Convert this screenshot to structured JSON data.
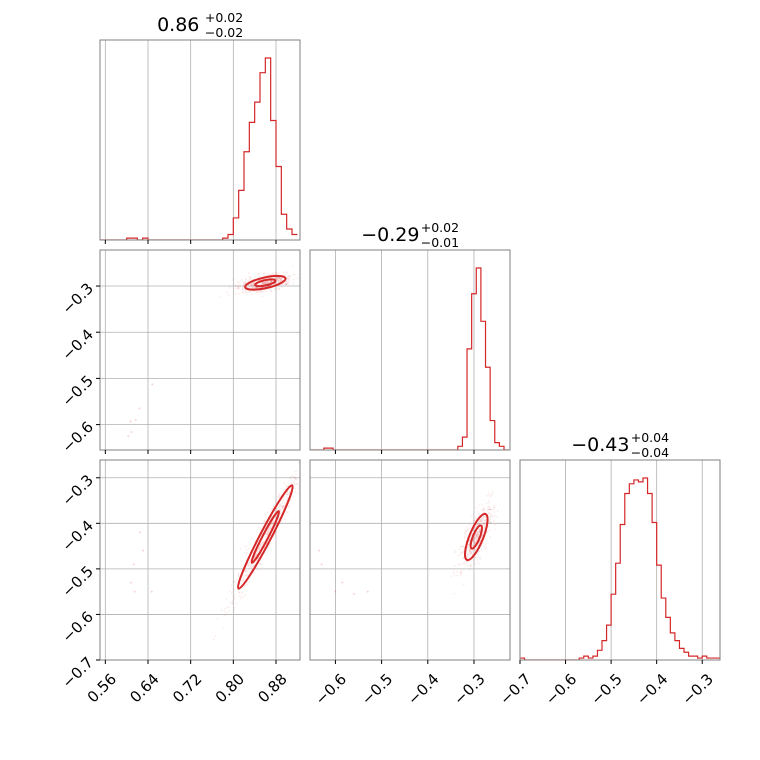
{
  "chart_data": {
    "type": "corner",
    "color": "#d62728",
    "grid": true,
    "parameters": [
      {
        "title": {
          "value": "0.86",
          "plus": "+0.02",
          "minus": "−0.02"
        },
        "range": [
          0.55,
          0.925
        ],
        "ticks": [
          0.56,
          0.64,
          0.72,
          0.8,
          0.88
        ],
        "tick_labels": [
          "0.56",
          "0.64",
          "0.72",
          "0.80",
          "0.88"
        ]
      },
      {
        "title": {
          "value": "−0.29",
          "plus": "+0.02",
          "minus": "−0.01"
        },
        "range": [
          -0.655,
          -0.222
        ],
        "ticks": [
          -0.6,
          -0.5,
          -0.4,
          -0.3
        ],
        "tick_labels": [
          "−0.6",
          "−0.5",
          "−0.4",
          "−0.3"
        ]
      },
      {
        "title": {
          "value": "−0.43",
          "plus": "+0.04",
          "minus": "−0.04"
        },
        "range": [
          -0.7,
          -0.261
        ],
        "ticks": [
          -0.7,
          -0.6,
          -0.5,
          -0.4,
          -0.3
        ],
        "tick_labels": [
          "−0.7",
          "−0.6",
          "−0.5",
          "−0.4",
          "−0.3"
        ]
      }
    ],
    "histograms": [
      {
        "param": 0,
        "x": [
          0.555,
          0.565,
          0.575,
          0.585,
          0.595,
          0.605,
          0.615,
          0.625,
          0.635,
          0.645,
          0.655,
          0.665,
          0.675,
          0.685,
          0.695,
          0.705,
          0.715,
          0.725,
          0.735,
          0.745,
          0.755,
          0.765,
          0.775,
          0.785,
          0.795,
          0.805,
          0.815,
          0.825,
          0.835,
          0.845,
          0.855,
          0.865,
          0.875,
          0.885,
          0.895,
          0.905,
          0.915
        ],
        "counts": [
          0,
          0,
          0,
          0,
          0,
          0.01,
          0.01,
          0,
          0.01,
          0,
          0,
          0,
          0,
          0,
          0,
          0,
          0,
          0,
          0,
          0,
          0,
          0,
          0,
          0.01,
          0.03,
          0.12,
          0.27,
          0.48,
          0.64,
          0.75,
          0.91,
          0.99,
          0.65,
          0.4,
          0.14,
          0.06,
          0.03
        ]
      },
      {
        "param": 1,
        "x": [
          -0.65,
          -0.64,
          -0.63,
          -0.62,
          -0.61,
          -0.6,
          -0.59,
          -0.58,
          -0.57,
          -0.56,
          -0.55,
          -0.54,
          -0.53,
          -0.52,
          -0.51,
          -0.5,
          -0.49,
          -0.48,
          -0.47,
          -0.46,
          -0.45,
          -0.44,
          -0.43,
          -0.42,
          -0.41,
          -0.4,
          -0.39,
          -0.38,
          -0.37,
          -0.36,
          -0.35,
          -0.34,
          -0.33,
          -0.32,
          -0.31,
          -0.3,
          -0.29,
          -0.28,
          -0.27,
          -0.26,
          -0.25,
          -0.24,
          -0.23
        ],
        "counts": [
          0,
          0,
          0,
          0.01,
          0.01,
          0,
          0,
          0,
          0,
          0,
          0,
          0,
          0,
          0,
          0,
          0,
          0,
          0,
          0,
          0,
          0,
          0,
          0,
          0,
          0,
          0,
          0,
          0,
          0,
          0,
          0,
          0,
          0.02,
          0.07,
          0.55,
          0.85,
          0.99,
          0.7,
          0.45,
          0.16,
          0.04,
          0.02,
          0
        ]
      },
      {
        "param": 2,
        "x": [
          -0.695,
          -0.685,
          -0.675,
          -0.665,
          -0.655,
          -0.645,
          -0.635,
          -0.625,
          -0.615,
          -0.605,
          -0.595,
          -0.585,
          -0.575,
          -0.565,
          -0.555,
          -0.545,
          -0.535,
          -0.525,
          -0.515,
          -0.505,
          -0.495,
          -0.485,
          -0.475,
          -0.465,
          -0.455,
          -0.445,
          -0.435,
          -0.425,
          -0.415,
          -0.405,
          -0.395,
          -0.385,
          -0.375,
          -0.365,
          -0.355,
          -0.345,
          -0.335,
          -0.325,
          -0.315,
          -0.305,
          -0.295,
          -0.285,
          -0.275,
          -0.265
        ],
        "counts": [
          0.01,
          0,
          0,
          0,
          0,
          0,
          0,
          0,
          0,
          0,
          0,
          0,
          0,
          0.01,
          0.02,
          0.01,
          0.02,
          0.05,
          0.1,
          0.18,
          0.34,
          0.5,
          0.7,
          0.86,
          0.91,
          0.93,
          0.92,
          0.94,
          0.86,
          0.71,
          0.49,
          0.32,
          0.22,
          0.14,
          0.1,
          0.06,
          0.04,
          0.02,
          0.02,
          0.01,
          0.02,
          0.01,
          0.01,
          0.01
        ]
      }
    ],
    "scatter_2d": [
      {
        "x_param": 0,
        "y_param": 1,
        "center": [
          0.86,
          -0.293
        ],
        "major_axis": [
          0.045,
          0.0115
        ],
        "minor_half_width": 0.0035,
        "contour_levels": [
          1.0,
          2.0
        ],
        "outliers": [
          [
            0.617,
            -0.59
          ],
          [
            0.624,
            -0.565
          ],
          [
            0.607,
            -0.593
          ],
          [
            0.609,
            -0.616
          ],
          [
            0.648,
            -0.513
          ],
          [
            0.603,
            -0.625
          ]
        ]
      },
      {
        "x_param": 0,
        "y_param": 2,
        "center": [
          0.86,
          -0.43
        ],
        "major_axis": [
          0.06,
          0.135
        ],
        "minor_half_width": 0.004,
        "contour_levels": [
          1.0,
          2.0
        ],
        "outliers": [
          [
            0.613,
            -0.49
          ],
          [
            0.625,
            -0.42
          ],
          [
            0.631,
            -0.46
          ],
          [
            0.608,
            -0.53
          ],
          [
            0.647,
            -0.55
          ],
          [
            0.615,
            -0.55
          ]
        ]
      },
      {
        "x_param": 1,
        "y_param": 2,
        "center": [
          -0.295,
          -0.43
        ],
        "major_axis": [
          0.024,
          0.06
        ],
        "minor_half_width": 0.007,
        "contour_levels": [
          1.0,
          2.0
        ],
        "outliers": [
          [
            -0.635,
            -0.46
          ],
          [
            -0.63,
            -0.49
          ],
          [
            -0.585,
            -0.53
          ],
          [
            -0.56,
            -0.555
          ],
          [
            -0.53,
            -0.55
          ],
          [
            -0.6,
            -0.55
          ]
        ]
      }
    ]
  }
}
